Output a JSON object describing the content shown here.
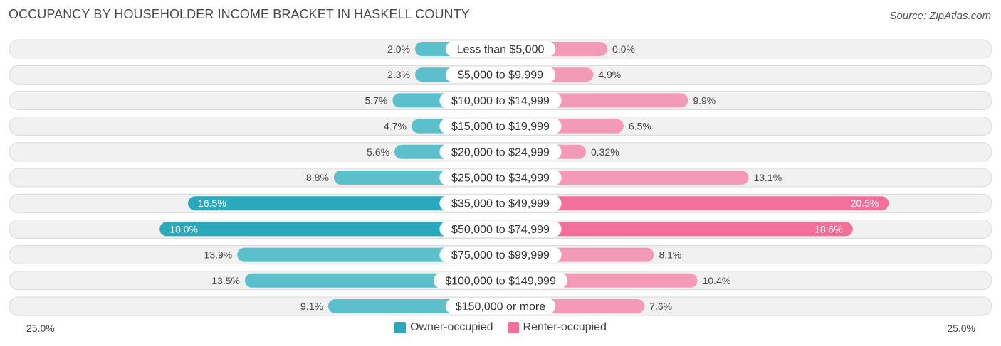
{
  "title": "OCCUPANCY BY HOUSEHOLDER INCOME BRACKET IN HASKELL COUNTY",
  "source": "Source: ZipAtlas.com",
  "colors": {
    "owner": "#5bbfcc",
    "owner_strong": "#2aa8bc",
    "renter": "#f59ab6",
    "renter_strong": "#f26f9c"
  },
  "chart_data": {
    "type": "bar",
    "orientation": "horizontal-diverging",
    "categories": [
      "Less than $5,000",
      "$5,000 to $9,999",
      "$10,000 to $14,999",
      "$15,000 to $19,999",
      "$20,000 to $24,999",
      "$25,000 to $34,999",
      "$35,000 to $49,999",
      "$50,000 to $74,999",
      "$75,000 to $99,999",
      "$100,000 to $149,999",
      "$150,000 or more"
    ],
    "series": [
      {
        "name": "Owner-occupied",
        "values": [
          2.0,
          2.3,
          5.7,
          4.7,
          5.6,
          8.8,
          16.5,
          18.0,
          13.9,
          13.5,
          9.1
        ],
        "labels": [
          "2.0%",
          "2.3%",
          "5.7%",
          "4.7%",
          "5.6%",
          "8.8%",
          "16.5%",
          "18.0%",
          "13.9%",
          "13.5%",
          "9.1%"
        ]
      },
      {
        "name": "Renter-occupied",
        "values": [
          0.0,
          4.9,
          9.9,
          6.5,
          0.32,
          13.1,
          20.5,
          18.6,
          8.1,
          10.4,
          7.6
        ],
        "labels": [
          "0.0%",
          "4.9%",
          "9.9%",
          "6.5%",
          "0.32%",
          "13.1%",
          "20.5%",
          "18.6%",
          "8.1%",
          "10.4%",
          "7.6%"
        ]
      }
    ],
    "xlim": [
      -25,
      25
    ],
    "axis_labels": {
      "left": "25.0%",
      "right": "25.0%"
    },
    "legend_position": "bottom-center"
  },
  "legend": {
    "owner_label": "Owner-occupied",
    "renter_label": "Renter-occupied"
  }
}
